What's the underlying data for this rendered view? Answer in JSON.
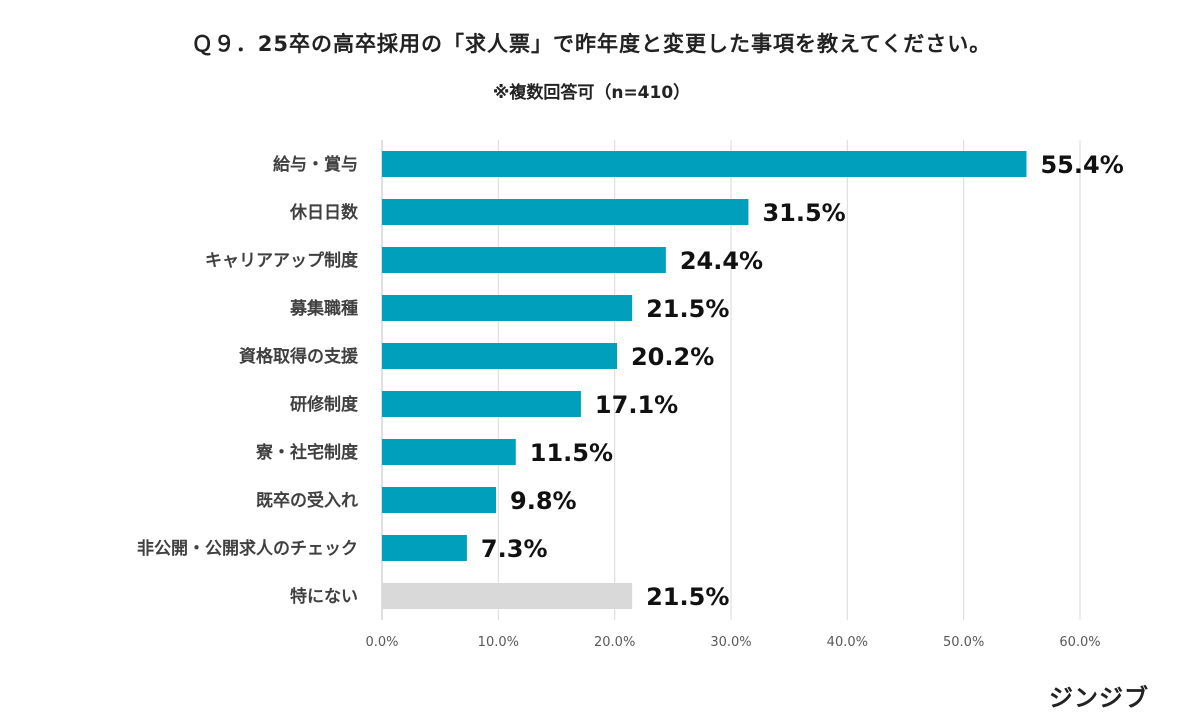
{
  "title": "Ｑ９．25卒の高卒採用の「求人票」で昨年度と変更した事項を教えてください。",
  "subtitle": "※複数回答可（n=410）",
  "brand": "ジンジブ",
  "colors": {
    "primary": "#009fbb",
    "none": "#d9d9d9"
  },
  "chart_data": {
    "type": "bar",
    "orientation": "horizontal",
    "categories": [
      "給与・賞与",
      "休日日数",
      "キャリアアップ制度",
      "募集職種",
      "資格取得の支援",
      "研修制度",
      "寮・社宅制度",
      "既卒の受入れ",
      "非公開・公開求人のチェック",
      "特にない"
    ],
    "values": [
      55.4,
      31.5,
      24.4,
      21.5,
      20.2,
      17.1,
      11.5,
      9.8,
      7.3,
      21.5
    ],
    "value_labels": [
      "55.4%",
      "31.5%",
      "24.4%",
      "21.5%",
      "20.2%",
      "17.1%",
      "11.5%",
      "9.8%",
      "7.3%",
      "21.5%"
    ],
    "bar_colors": [
      "#009fbb",
      "#009fbb",
      "#009fbb",
      "#009fbb",
      "#009fbb",
      "#009fbb",
      "#009fbb",
      "#009fbb",
      "#009fbb",
      "#d9d9d9"
    ],
    "xlim": [
      0,
      60
    ],
    "xticks": [
      0,
      10,
      20,
      30,
      40,
      50,
      60
    ],
    "xtick_labels": [
      "0.0%",
      "10.0%",
      "20.0%",
      "30.0%",
      "40.0%",
      "50.0%",
      "60.0%"
    ],
    "grid": true,
    "legend": "none"
  }
}
